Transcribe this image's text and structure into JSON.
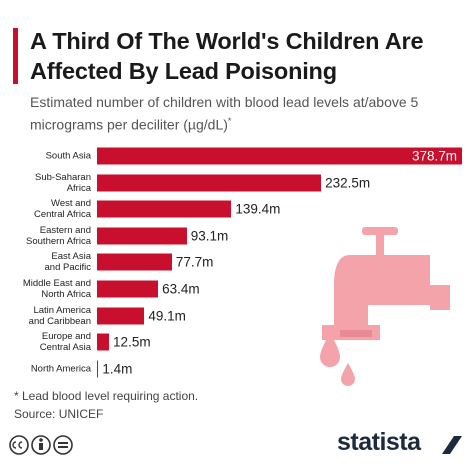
{
  "chart_data": {
    "type": "bar",
    "orientation": "horizontal",
    "title": "A Third Of The World's Children Are Affected By Lead Poisoning",
    "subtitle": "Estimated number of children with blood lead levels at/above 5 micrograms per deciliter (µg/dL)",
    "subtitle_mark": "*",
    "categories": [
      "South Asia",
      "Sub-Saharan\nAfrica",
      "West and\nCentral Africa",
      "Eastern and\nSouthern Africa",
      "East Asia\nand Pacific",
      "Middle East and\nNorth Africa",
      "Latin America\nand Caribbean",
      "Europe and\nCentral Asia",
      "North America"
    ],
    "values": [
      378.7,
      232.5,
      139.4,
      93.1,
      77.7,
      63.4,
      49.1,
      12.5,
      1.4
    ],
    "value_labels": [
      "378.7m",
      "232.5m",
      "139.4m",
      "93.1m",
      "77.7m",
      "63.4m",
      "49.1m",
      "12.5m",
      "1.4m"
    ],
    "xlim": [
      0,
      378.7
    ],
    "color": "#c8102e",
    "footnote": "* Lead blood level requiring action.",
    "source": "Source: UNICEF",
    "logo": "statista"
  }
}
